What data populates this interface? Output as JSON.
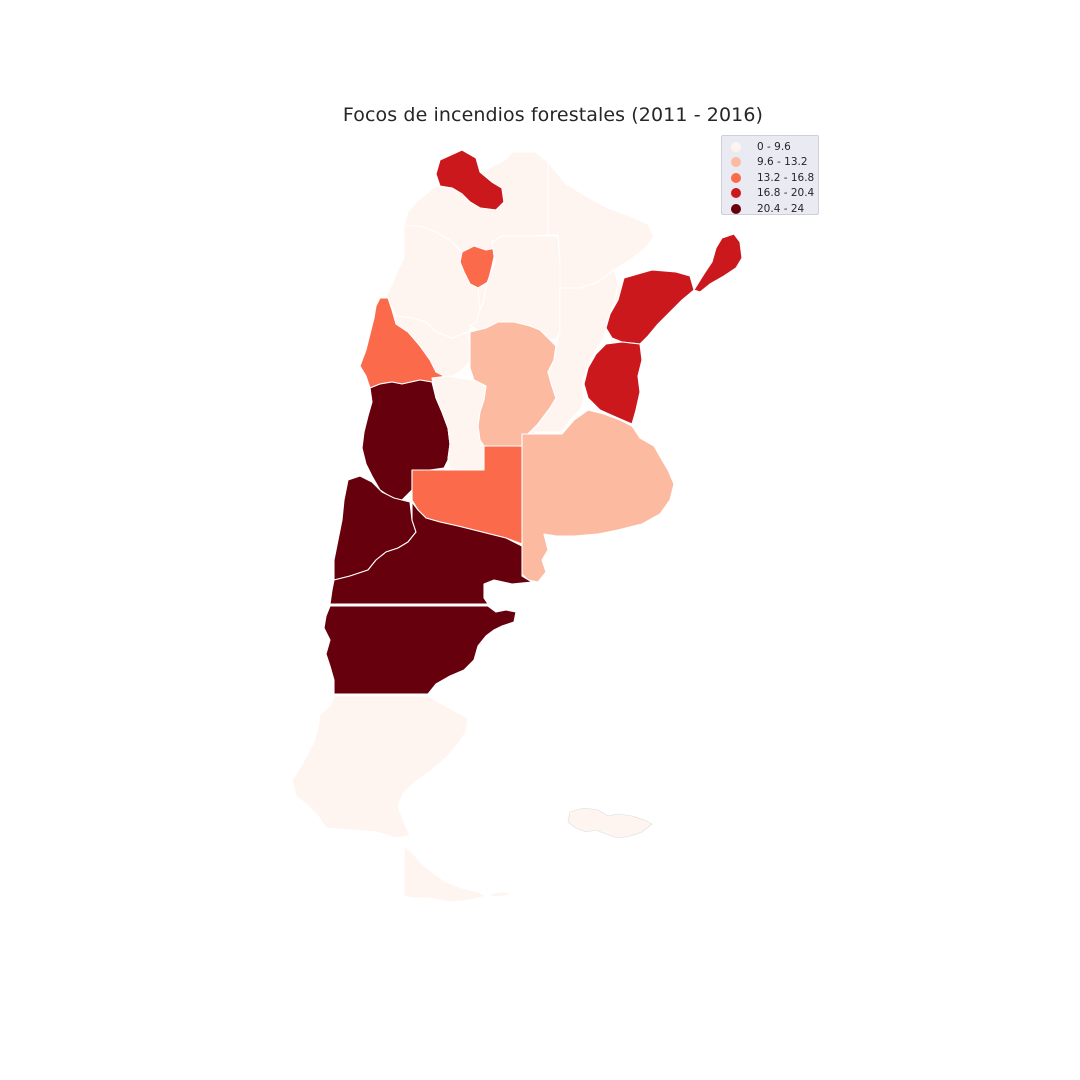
{
  "title": "Focos de incendios forestales (2011 - 2016)",
  "colors": {
    "c0": "#fff5f0",
    "c1": "#fcbba1",
    "c2": "#fb6a4a",
    "c3": "#cb181d",
    "c4": "#67000d"
  },
  "legend": [
    {
      "label": "0 - 9.6",
      "color": "#fff5f0"
    },
    {
      "label": "9.6 - 13.2",
      "color": "#fcbba1"
    },
    {
      "label": "13.2 - 16.8",
      "color": "#fb6a4a"
    },
    {
      "label": "16.8 - 20.4",
      "color": "#cb181d"
    },
    {
      "label": "20.4 - 24",
      "color": "#67000d"
    }
  ]
}
